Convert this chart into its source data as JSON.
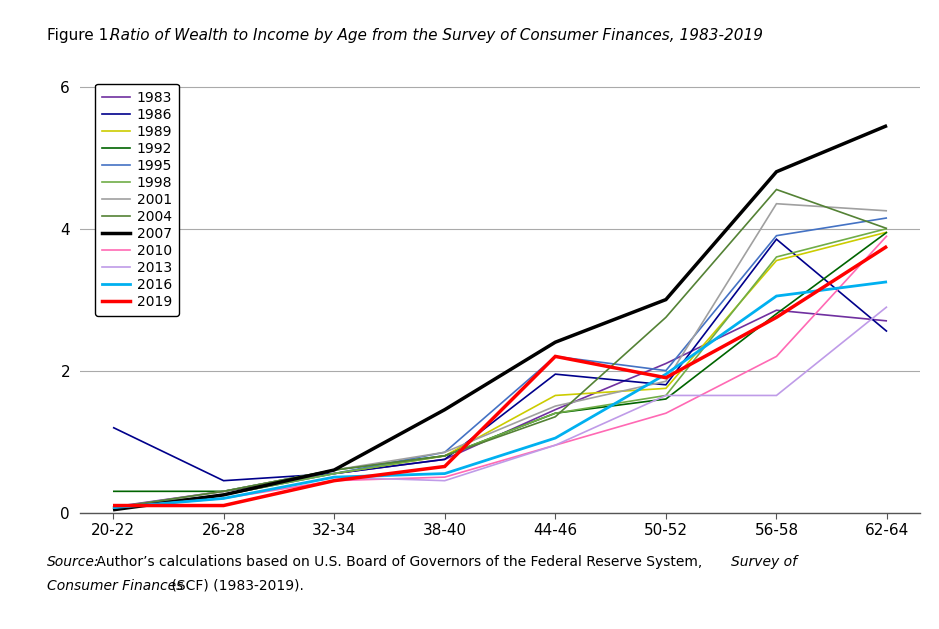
{
  "x_labels": [
    "20-22",
    "26-28",
    "32-34",
    "38-40",
    "44-46",
    "50-52",
    "56-58",
    "62-64"
  ],
  "ylim": [
    0,
    6.2
  ],
  "yticks": [
    0,
    2,
    4,
    6
  ],
  "series": [
    {
      "year": "1983",
      "color": "#7030A0",
      "linewidth": 1.2,
      "values": [
        0.08,
        0.3,
        0.55,
        0.75,
        1.45,
        2.1,
        2.85,
        2.7
      ]
    },
    {
      "year": "1986",
      "color": "#00008B",
      "linewidth": 1.2,
      "values": [
        1.2,
        0.45,
        0.55,
        0.75,
        1.95,
        1.8,
        3.85,
        2.55
      ]
    },
    {
      "year": "1989",
      "color": "#CCCC00",
      "linewidth": 1.2,
      "values": [
        0.07,
        0.25,
        0.55,
        0.8,
        1.65,
        1.75,
        3.55,
        3.95
      ]
    },
    {
      "year": "1992",
      "color": "#006400",
      "linewidth": 1.2,
      "values": [
        0.3,
        0.3,
        0.6,
        0.8,
        1.4,
        1.6,
        2.8,
        3.95
      ]
    },
    {
      "year": "1995",
      "color": "#4472C4",
      "linewidth": 1.2,
      "values": [
        0.07,
        0.25,
        0.55,
        0.85,
        2.2,
        2.0,
        3.9,
        4.15
      ]
    },
    {
      "year": "1998",
      "color": "#70AD47",
      "linewidth": 1.2,
      "values": [
        0.07,
        0.25,
        0.55,
        0.8,
        1.4,
        1.65,
        3.6,
        4.0
      ]
    },
    {
      "year": "2001",
      "color": "#A0A0A0",
      "linewidth": 1.2,
      "values": [
        0.07,
        0.3,
        0.6,
        0.85,
        1.5,
        1.85,
        4.35,
        4.25
      ]
    },
    {
      "year": "2004",
      "color": "#548235",
      "linewidth": 1.2,
      "values": [
        0.07,
        0.3,
        0.6,
        0.8,
        1.35,
        2.75,
        4.55,
        4.0
      ]
    },
    {
      "year": "2007",
      "color": "#000000",
      "linewidth": 2.5,
      "values": [
        0.04,
        0.25,
        0.6,
        1.45,
        2.4,
        3.0,
        4.8,
        5.45
      ]
    },
    {
      "year": "2010",
      "color": "#FF69B4",
      "linewidth": 1.2,
      "values": [
        0.07,
        0.2,
        0.45,
        0.5,
        0.95,
        1.4,
        2.2,
        3.9
      ]
    },
    {
      "year": "2013",
      "color": "#BF9BE8",
      "linewidth": 1.2,
      "values": [
        0.07,
        0.2,
        0.5,
        0.45,
        0.95,
        1.65,
        1.65,
        2.9
      ]
    },
    {
      "year": "2016",
      "color": "#00B0F0",
      "linewidth": 2.0,
      "values": [
        0.07,
        0.2,
        0.5,
        0.55,
        1.05,
        1.95,
        3.05,
        3.25
      ]
    },
    {
      "year": "2019",
      "color": "#FF0000",
      "linewidth": 2.5,
      "values": [
        0.1,
        0.1,
        0.45,
        0.65,
        2.2,
        1.9,
        2.75,
        3.75
      ]
    }
  ],
  "title_normal": "Figure 1. ",
  "title_italic": "Ratio of Wealth to Income by Age from the Survey of Consumer Finances, 1983-2019",
  "source_italic": "Source:",
  "source_normal": " Author’s calculations based on U.S. Board of Governors of the Federal Reserve System, ",
  "source_italic2": "Survey of",
  "source_line2_italic": "Consumer Finances",
  "source_line2_normal": " (SCF) (1983-2019)."
}
